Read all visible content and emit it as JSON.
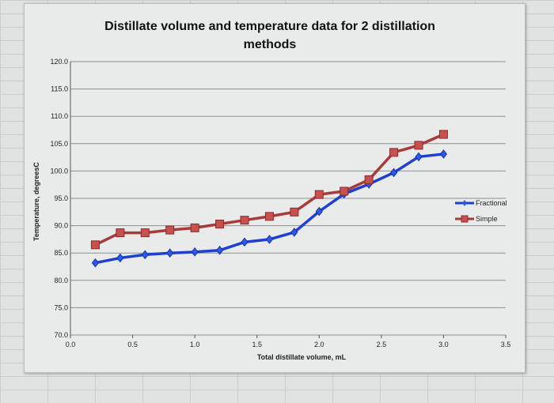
{
  "chart_data": {
    "type": "line",
    "title": "Distillate volume and temperature data for 2 distillation methods",
    "xlabel": "Total distillate volume, mL",
    "ylabel": "Temperature, degreesC",
    "xlim": [
      0,
      3.5
    ],
    "ylim": [
      70,
      120
    ],
    "xticks": [
      "0.0",
      "0.5",
      "1.0",
      "1.5",
      "2.0",
      "2.5",
      "3.0",
      "3.5"
    ],
    "yticks": [
      "70.0",
      "75.0",
      "80.0",
      "85.0",
      "90.0",
      "95.0",
      "100.0",
      "105.0",
      "110.0",
      "115.0",
      "120.0"
    ],
    "grid": "horizontal",
    "legend": "right",
    "x": [
      0.2,
      0.4,
      0.6,
      0.8,
      1.0,
      1.2,
      1.4,
      1.6,
      1.8,
      2.0,
      2.2,
      2.4,
      2.6,
      2.8,
      3.0
    ],
    "series": [
      {
        "name": "Fractional",
        "color": "#1f3fd0",
        "marker": "diamond",
        "values": [
          83.2,
          84.1,
          84.7,
          85.0,
          85.2,
          85.5,
          87.0,
          87.5,
          88.8,
          92.6,
          95.8,
          97.6,
          99.7,
          102.6,
          103.1
        ]
      },
      {
        "name": "Simple",
        "color": "#a83a3a",
        "marker": "square",
        "values": [
          86.5,
          88.7,
          88.7,
          89.2,
          89.6,
          90.3,
          91.0,
          91.7,
          92.5,
          95.7,
          96.3,
          98.4,
          103.4,
          104.7,
          106.7
        ]
      }
    ]
  }
}
